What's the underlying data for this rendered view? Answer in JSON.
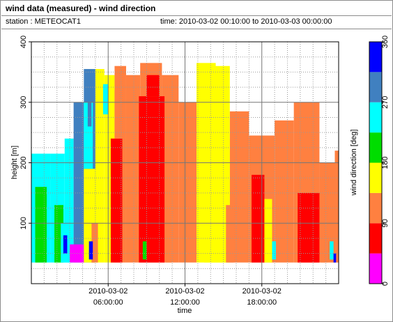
{
  "header": {
    "title": "wind data (measured) - wind direction",
    "station": "station : METEOCAT1",
    "time_range": "time: 2010-03-02 00:10:00 to 2010-03-03 00:00:00"
  },
  "chart_data": {
    "type": "heatmap",
    "title": "wind data (measured) - wind direction",
    "xlabel": "time",
    "ylabel": "height [m]",
    "colorbar_label": "wind direction [deg]",
    "x_range_hours": [
      0,
      24
    ],
    "ylim": [
      0,
      400
    ],
    "x_ticks": [
      {
        "hour": 6,
        "line1": "2010-03-02",
        "line2": "06:00:00"
      },
      {
        "hour": 12,
        "line1": "2010-03-02",
        "line2": "12:00:00"
      },
      {
        "hour": 18,
        "line1": "2010-03-02",
        "line2": "18:00:00"
      }
    ],
    "y_ticks": [
      100,
      200,
      300,
      400
    ],
    "colorbar": {
      "ticks": [
        0,
        90,
        180,
        270,
        360
      ],
      "bins": [
        {
          "from": 0,
          "to": 45,
          "color": "#ff00ff"
        },
        {
          "from": 45,
          "to": 90,
          "color": "#ff0000"
        },
        {
          "from": 90,
          "to": 135,
          "color": "#ff8040"
        },
        {
          "from": 135,
          "to": 180,
          "color": "#ffff00"
        },
        {
          "from": 180,
          "to": 225,
          "color": "#00dd00"
        },
        {
          "from": 225,
          "to": 270,
          "color": "#00ffff"
        },
        {
          "from": 270,
          "to": 315,
          "color": "#4080c0"
        },
        {
          "from": 315,
          "to": 360,
          "color": "#0000ff"
        }
      ]
    },
    "data_bottom_m": 35,
    "regions": [
      {
        "from_h": 0.0,
        "to_h": 1.5,
        "top_m": 215,
        "direction_deg": 250
      },
      {
        "from_h": 1.5,
        "to_h": 2.6,
        "top_m": 215,
        "direction_deg": 250
      },
      {
        "from_h": 2.6,
        "to_h": 3.3,
        "top_m": 240,
        "direction_deg": 250
      },
      {
        "from_h": 3.3,
        "to_h": 4.1,
        "top_m": 300,
        "direction_deg": 290
      },
      {
        "from_h": 4.1,
        "to_h": 5.0,
        "top_m": 355,
        "direction_deg": 290
      },
      {
        "from_h": 5.0,
        "to_h": 5.7,
        "top_m": 355,
        "direction_deg": 160
      },
      {
        "from_h": 5.7,
        "to_h": 6.5,
        "top_m": 345,
        "direction_deg": 160
      },
      {
        "from_h": 6.5,
        "to_h": 7.4,
        "top_m": 360,
        "direction_deg": 110
      },
      {
        "from_h": 7.4,
        "to_h": 8.5,
        "top_m": 345,
        "direction_deg": 110
      },
      {
        "from_h": 8.5,
        "to_h": 10.2,
        "top_m": 365,
        "direction_deg": 110
      },
      {
        "from_h": 10.2,
        "to_h": 11.5,
        "top_m": 345,
        "direction_deg": 110
      },
      {
        "from_h": 11.5,
        "to_h": 12.9,
        "top_m": 300,
        "direction_deg": 110
      },
      {
        "from_h": 12.9,
        "to_h": 14.4,
        "top_m": 365,
        "direction_deg": 160
      },
      {
        "from_h": 14.4,
        "to_h": 15.5,
        "top_m": 240,
        "direction_deg": 160
      },
      {
        "from_h": 15.5,
        "to_h": 17.0,
        "top_m": 285,
        "direction_deg": 110
      },
      {
        "from_h": 17.0,
        "to_h": 19.0,
        "top_m": 245,
        "direction_deg": 110
      },
      {
        "from_h": 19.0,
        "to_h": 20.5,
        "top_m": 270,
        "direction_deg": 110
      },
      {
        "from_h": 20.5,
        "to_h": 22.5,
        "top_m": 300,
        "direction_deg": 110
      },
      {
        "from_h": 22.5,
        "to_h": 23.7,
        "top_m": 200,
        "direction_deg": 110
      },
      {
        "from_h": 23.7,
        "to_h": 24.0,
        "top_m": 220,
        "direction_deg": 90
      }
    ],
    "patches": [
      {
        "from_h": 0.3,
        "to_h": 1.2,
        "from_m": 35,
        "to_m": 160,
        "direction_deg": 200
      },
      {
        "from_h": 1.8,
        "to_h": 2.5,
        "from_m": 35,
        "to_m": 130,
        "direction_deg": 200
      },
      {
        "from_h": 2.3,
        "to_h": 3.2,
        "from_m": 35,
        "to_m": 100,
        "direction_deg": 250
      },
      {
        "from_h": 3.0,
        "to_h": 4.1,
        "from_m": 35,
        "to_m": 65,
        "direction_deg": 20
      },
      {
        "from_h": 2.5,
        "to_h": 2.8,
        "from_m": 50,
        "to_m": 80,
        "direction_deg": 340
      },
      {
        "from_h": 4.1,
        "to_h": 5.0,
        "from_m": 35,
        "to_m": 190,
        "direction_deg": 150
      },
      {
        "from_h": 4.1,
        "to_h": 4.8,
        "from_m": 190,
        "to_m": 300,
        "direction_deg": 250
      },
      {
        "from_h": 4.7,
        "to_h": 5.2,
        "from_m": 35,
        "to_m": 100,
        "direction_deg": 110
      },
      {
        "from_h": 4.4,
        "to_h": 4.7,
        "from_m": 260,
        "to_m": 350,
        "direction_deg": 290
      },
      {
        "from_h": 5.6,
        "to_h": 6.0,
        "from_m": 280,
        "to_m": 330,
        "direction_deg": 250
      },
      {
        "from_h": 4.5,
        "to_h": 4.8,
        "from_m": 40,
        "to_m": 70,
        "direction_deg": 340
      },
      {
        "from_h": 6.2,
        "to_h": 7.1,
        "from_m": 35,
        "to_m": 240,
        "direction_deg": 60
      },
      {
        "from_h": 6.5,
        "to_h": 7.3,
        "from_m": 240,
        "to_m": 320,
        "direction_deg": 110
      },
      {
        "from_h": 8.4,
        "to_h": 10.4,
        "from_m": 35,
        "to_m": 310,
        "direction_deg": 60
      },
      {
        "from_h": 9.0,
        "to_h": 10.0,
        "from_m": 310,
        "to_m": 345,
        "direction_deg": 60
      },
      {
        "from_h": 8.7,
        "to_h": 9.0,
        "from_m": 40,
        "to_m": 70,
        "direction_deg": 200
      },
      {
        "from_h": 10.5,
        "to_h": 11.0,
        "from_m": 35,
        "to_m": 140,
        "direction_deg": 110
      },
      {
        "from_h": 13.5,
        "to_h": 15.5,
        "from_m": 35,
        "to_m": 360,
        "direction_deg": 160
      },
      {
        "from_h": 15.2,
        "to_h": 15.8,
        "from_m": 35,
        "to_m": 130,
        "direction_deg": 110
      },
      {
        "from_h": 17.2,
        "to_h": 18.2,
        "from_m": 35,
        "to_m": 180,
        "direction_deg": 60
      },
      {
        "from_h": 18.2,
        "to_h": 18.8,
        "from_m": 35,
        "to_m": 140,
        "direction_deg": 160
      },
      {
        "from_h": 18.8,
        "to_h": 19.1,
        "from_m": 40,
        "to_m": 70,
        "direction_deg": 250
      },
      {
        "from_h": 20.8,
        "to_h": 22.5,
        "from_m": 35,
        "to_m": 150,
        "direction_deg": 60
      },
      {
        "from_h": 22.6,
        "to_h": 23.1,
        "from_m": 35,
        "to_m": 200,
        "direction_deg": 110
      },
      {
        "from_h": 23.3,
        "to_h": 23.6,
        "from_m": 40,
        "to_m": 70,
        "direction_deg": 250
      },
      {
        "from_h": 23.6,
        "to_h": 23.8,
        "from_m": 35,
        "to_m": 50,
        "direction_deg": 340
      }
    ]
  }
}
